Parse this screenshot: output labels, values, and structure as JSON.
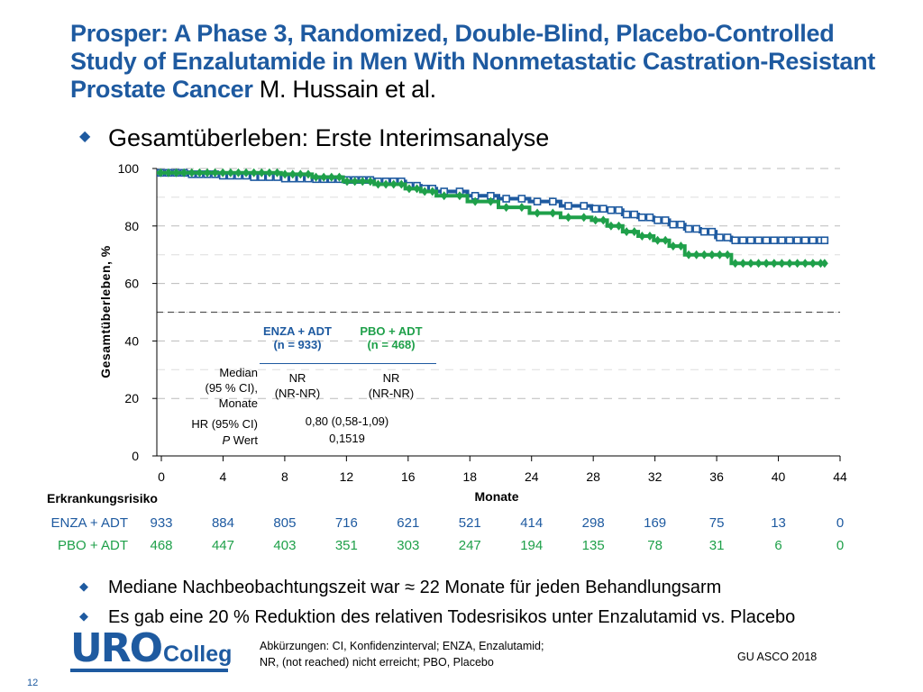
{
  "slide": {
    "title": "Prosper: A Phase 3, Randomized, Double-Blind, Placebo-Controlled Study of Enzalutamide in Men With Nonmetastatic Castration-Resistant Prostate Cancer",
    "authors": "M. Hussain et al.",
    "main_bullet": "Gesamtüberleben: Erste Interimsanalyse",
    "bullets": [
      "Mediane Nachbeobachtungszeit war ≈ 22 Monate für jeden Behandlungsarm",
      "Es gab eine 20 % Reduktion des relativen Todesrisikos unter Enzalutamid vs. Placebo"
    ],
    "abbreviations_line1": "Abkürzungen: CI, Konfidenzinterval; ENZA, Enzalutamid;",
    "abbreviations_line2": "NR, (not reached) nicht erreicht; PBO, Placebo",
    "source": "GU ASCO 2018",
    "page_number": "12",
    "logo_uro": "URO",
    "logo_colleg": "Colleg",
    "colors": {
      "title": "#1e5aa0",
      "enza": "#1e5aa0",
      "pbo": "#1fa04a"
    }
  },
  "chart_data": {
    "type": "line",
    "ylabel": "Gesamtüberleben, %",
    "xlabel": "Monate",
    "ylim": [
      0,
      100
    ],
    "yticks": [
      0,
      20,
      40,
      60,
      80,
      100
    ],
    "xtick_labels": [
      "0",
      "4",
      "8",
      "12",
      "16",
      "18",
      "24",
      "28",
      "32",
      "36",
      "40",
      "44"
    ],
    "grid": "dashed-horizontal",
    "reference_line_y": 50,
    "series": [
      {
        "name": "ENZA + ADT",
        "color": "#1e5aa0",
        "marker": "square",
        "x": [
          0,
          2,
          4,
          6,
          8,
          10,
          12,
          14,
          16,
          17,
          18,
          20,
          22,
          24,
          26,
          28,
          29,
          30,
          31,
          32,
          33,
          34,
          35,
          36,
          37,
          38,
          39,
          40,
          41,
          42,
          43
        ],
        "y": [
          98.5,
          98,
          97.5,
          97,
          96.5,
          96.3,
          96,
          95.5,
          94,
          93,
          92,
          90.5,
          89.5,
          88.5,
          87,
          86,
          85.5,
          84,
          83,
          82,
          80.5,
          79,
          78,
          76,
          75,
          75,
          75,
          75,
          75,
          75,
          75
        ]
      },
      {
        "name": "PBO + ADT",
        "color": "#1fa04a",
        "marker": "diamond",
        "x": [
          0,
          2,
          4,
          6,
          8,
          10,
          12,
          14,
          16,
          17,
          18,
          20,
          22,
          24,
          26,
          28,
          29,
          30,
          31,
          32,
          33,
          34,
          35,
          36,
          37,
          38,
          39,
          40,
          41,
          42,
          43
        ],
        "y": [
          98.5,
          98.5,
          98.5,
          98.5,
          98,
          97,
          95.5,
          94.5,
          93,
          92,
          90.5,
          88.5,
          86.5,
          84.5,
          83,
          82,
          80,
          78,
          76.5,
          75,
          73,
          70,
          70,
          70,
          67,
          67,
          67,
          67,
          67,
          67,
          67
        ]
      }
    ],
    "inset_table": {
      "col_headers": [
        {
          "name": "ENZA + ADT",
          "n": "(n = 933)"
        },
        {
          "name": "PBO + ADT",
          "n": "(n = 468)"
        }
      ],
      "row1_label": [
        "Median",
        "(95 % CI),",
        "Monate"
      ],
      "row1_values": [
        [
          "NR",
          "(NR-NR)"
        ],
        [
          "NR",
          "(NR-NR)"
        ]
      ],
      "row2_label": "HR (95% CI)",
      "row2_value": "0,80 (0,58-1,09)",
      "row3_label_italic": "P",
      "row3_label": " Wert",
      "row3_value": "0,1519"
    },
    "risk_table": {
      "title": "Erkrankungsrisiko",
      "rows": [
        {
          "label": "ENZA + ADT",
          "values": [
            "933",
            "884",
            "805",
            "716",
            "621",
            "521",
            "414",
            "298",
            "169",
            "75",
            "13",
            "0"
          ]
        },
        {
          "label": "PBO + ADT",
          "values": [
            "468",
            "447",
            "403",
            "351",
            "303",
            "247",
            "194",
            "135",
            "78",
            "31",
            "6",
            "0"
          ]
        }
      ]
    }
  }
}
